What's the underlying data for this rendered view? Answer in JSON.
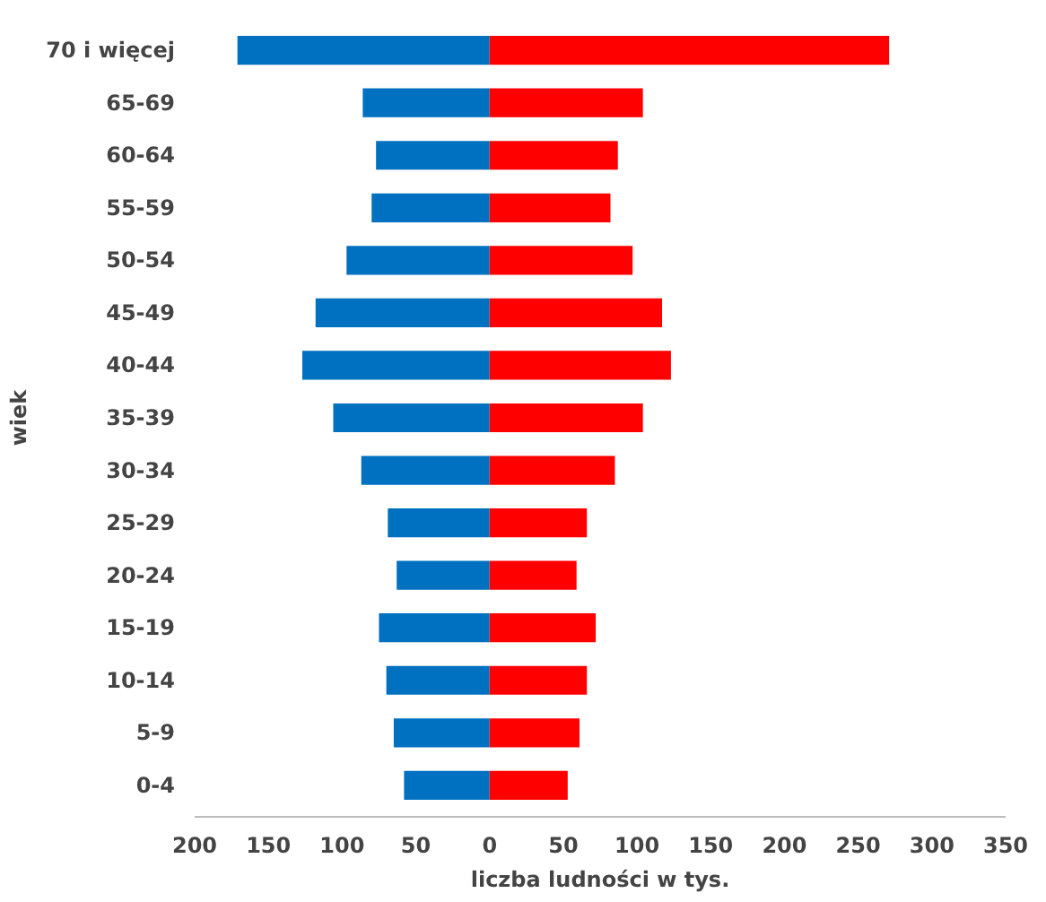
{
  "chart_data": {
    "type": "bar",
    "orientation": "horizontal",
    "stacked": true,
    "xlabel": "liczba ludności w tys.",
    "ylabel": "wiek",
    "categories": [
      "70 i więcej",
      "65-69",
      "60-64",
      "55-59",
      "50-54",
      "45-49",
      "40-44",
      "35-39",
      "30-34",
      "25-29",
      "20-24",
      "15-19",
      "10-14",
      "5-9",
      "0-4"
    ],
    "series": [
      {
        "color": "#0070c0",
        "values": [
          -171,
          -86,
          -77,
          -80,
          -97,
          -118,
          -127,
          -106,
          -87,
          -69,
          -63,
          -75,
          -70,
          -65,
          -58
        ]
      },
      {
        "color": "#ff0000",
        "values": [
          271,
          104,
          87,
          82,
          97,
          117,
          123,
          104,
          85,
          66,
          59,
          72,
          66,
          61,
          53
        ]
      }
    ],
    "xlim": [
      -200,
      350
    ],
    "xticks": [
      {
        "value": -200,
        "label": "200"
      },
      {
        "value": -150,
        "label": "150"
      },
      {
        "value": -100,
        "label": "100"
      },
      {
        "value": -50,
        "label": "50"
      },
      0,
      50,
      100,
      150,
      200,
      250,
      300,
      350
    ],
    "grid": false
  }
}
